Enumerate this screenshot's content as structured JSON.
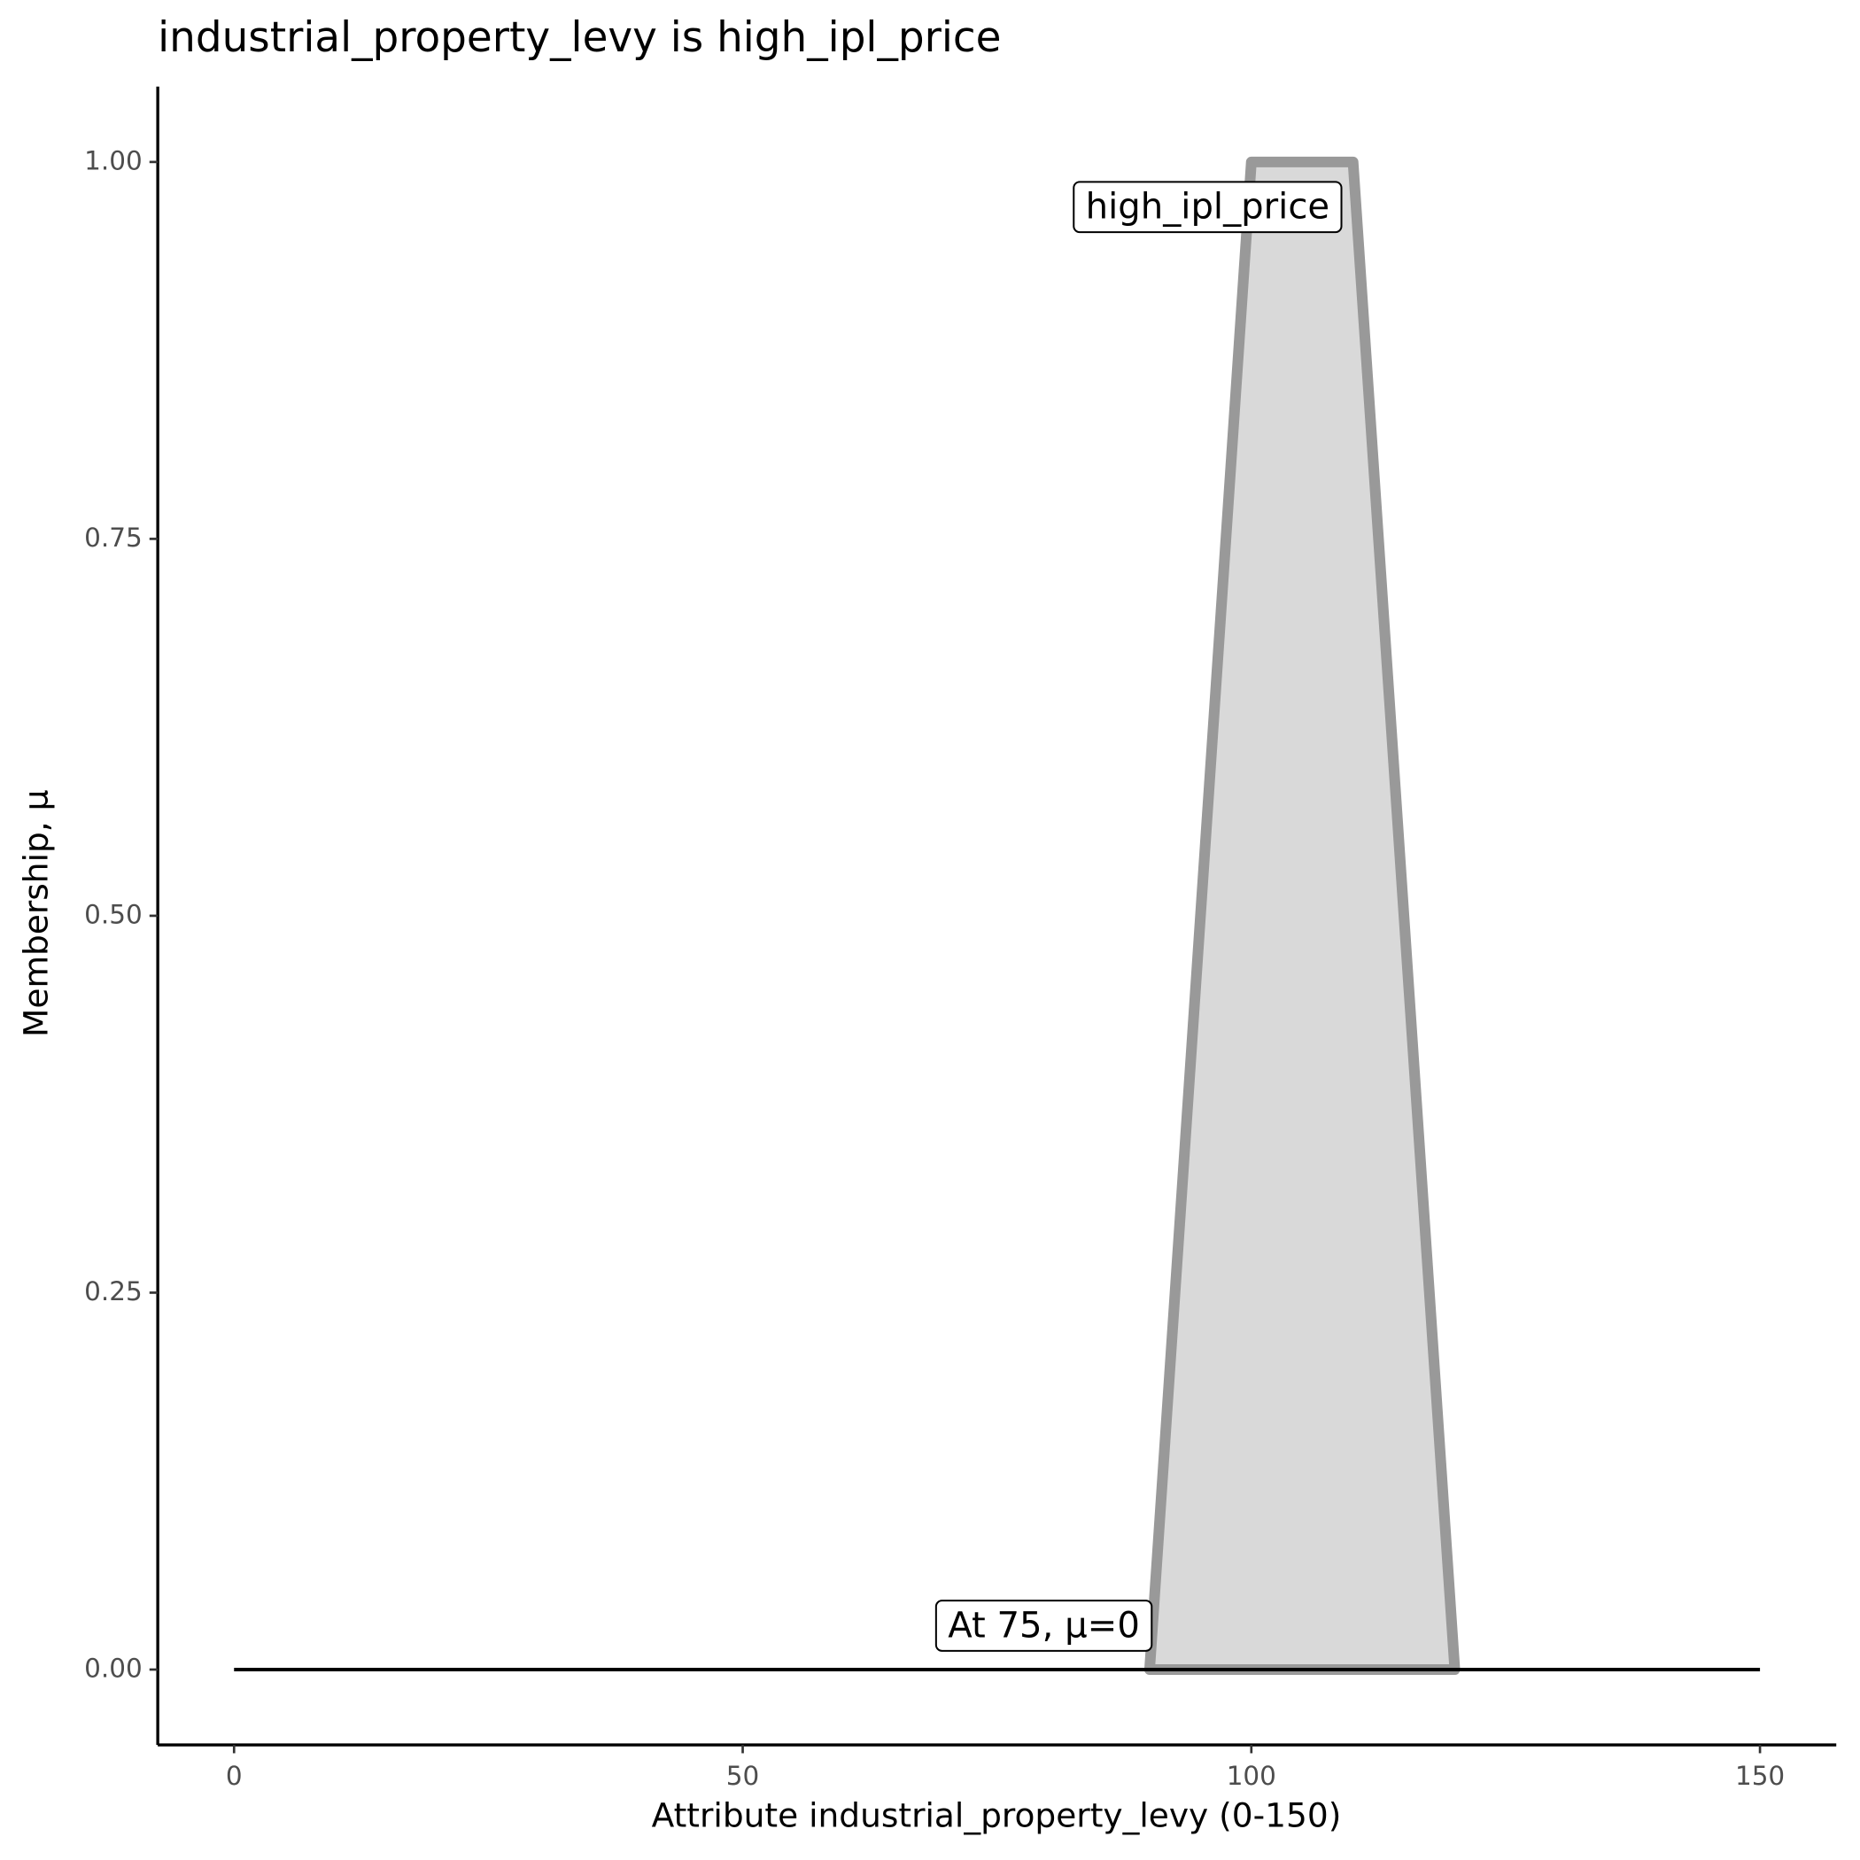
{
  "chart_data": {
    "type": "line",
    "title": "industrial_property_levy is high_ipl_price",
    "x_label": "Attribute industrial_property_levy (0-150)",
    "y_label": "Membership, μ",
    "xlim": [
      -7.5,
      157.5
    ],
    "xticks": [
      0,
      50,
      100,
      150
    ],
    "ylim": [
      -0.05,
      1.05
    ],
    "yticks": [
      {
        "value": 0,
        "label": "0.00"
      },
      {
        "value": 0.25,
        "label": "0.25"
      },
      {
        "value": 0.5,
        "label": "0.50"
      },
      {
        "value": 0.75,
        "label": "0.75"
      },
      {
        "value": 1,
        "label": "1.00"
      }
    ],
    "grid": false,
    "series": [
      {
        "name": "high_ipl_price",
        "color": "#999999",
        "fill": "#d9d9d9",
        "x": [
          90,
          100,
          110,
          120
        ],
        "values": [
          0,
          1,
          1,
          0
        ]
      },
      {
        "color": "#000000",
        "x": [
          0,
          150
        ],
        "values": [
          0,
          0
        ]
      }
    ],
    "annotations": [
      "At 75, μ=0"
    ]
  }
}
